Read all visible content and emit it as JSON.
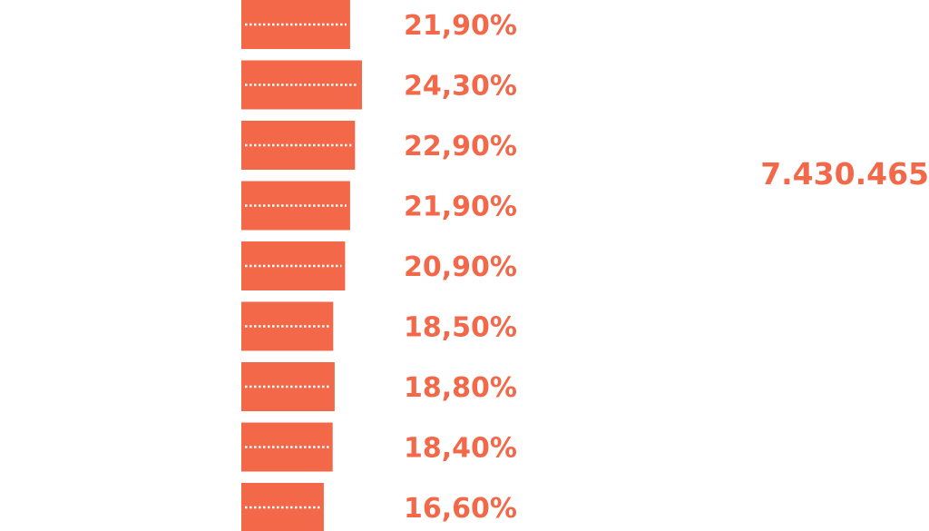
{
  "colors": {
    "accent": "#f26849",
    "stripe": "#ffffff",
    "background": "#ffffff"
  },
  "chart_data": {
    "type": "bar",
    "orientation": "horizontal",
    "values": [
      21.9,
      24.3,
      22.9,
      21.9,
      20.9,
      18.5,
      18.8,
      18.4,
      16.6
    ],
    "value_labels": [
      "21,90%",
      "24,30%",
      "22,90%",
      "21,90%",
      "20,90%",
      "18,50%",
      "18,80%",
      "18,40%",
      "16,60%"
    ],
    "unit": "%",
    "xlim": [
      0,
      24.3
    ],
    "grid": false,
    "legend": "none"
  },
  "total": {
    "value": "7.430.465"
  }
}
